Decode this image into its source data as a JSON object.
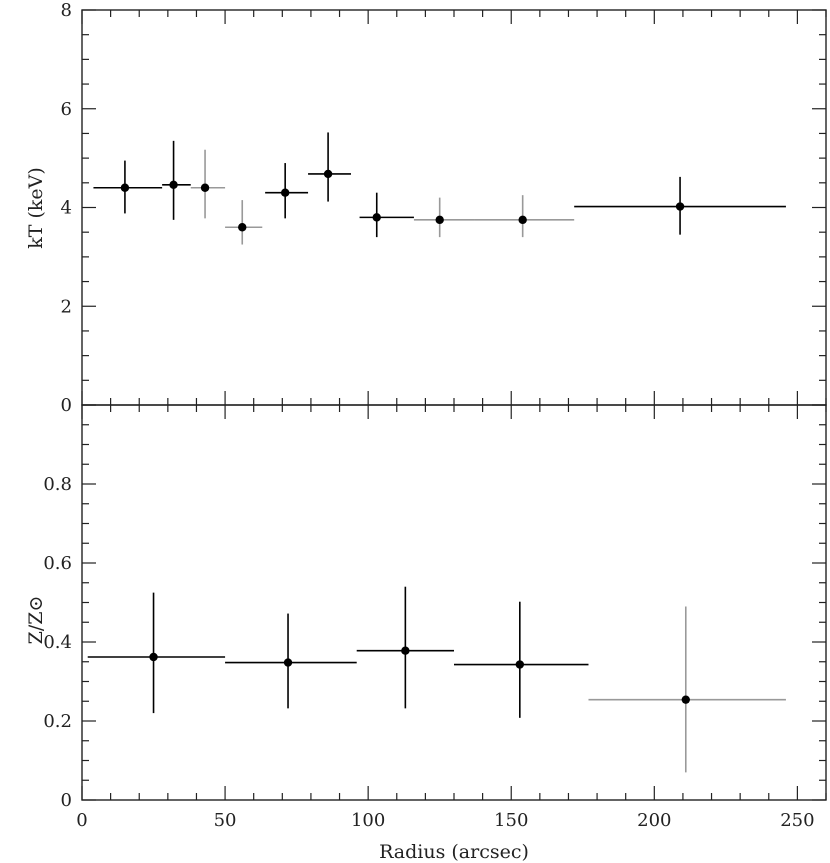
{
  "chart_data": [
    {
      "type": "scatter",
      "panel": "top",
      "xlabel": "",
      "ylabel": "kT (keV)",
      "xlim": [
        0,
        260
      ],
      "ylim": [
        0,
        8
      ],
      "ytick_labels": [
        "0",
        "2",
        "4",
        "6",
        "8"
      ],
      "x_ticks": [
        0,
        50,
        100,
        150,
        200,
        250
      ],
      "grid": false,
      "series": [
        {
          "points": [
            {
              "x": 15,
              "y": 4.4,
              "xlo": 4,
              "xhi": 28,
              "ylo": 3.88,
              "yhi": 4.95,
              "color": "#000000"
            },
            {
              "x": 32,
              "y": 4.46,
              "xlo": 28,
              "xhi": 38,
              "ylo": 3.75,
              "yhi": 5.35,
              "color": "#000000"
            },
            {
              "x": 43,
              "y": 4.4,
              "xlo": 38,
              "xhi": 50,
              "ylo": 3.78,
              "yhi": 5.17,
              "color": "#999999"
            },
            {
              "x": 56,
              "y": 3.6,
              "xlo": 50,
              "xhi": 63,
              "ylo": 3.25,
              "yhi": 4.15,
              "color": "#999999"
            },
            {
              "x": 71,
              "y": 4.3,
              "xlo": 64,
              "xhi": 79,
              "ylo": 3.78,
              "yhi": 4.9,
              "color": "#000000"
            },
            {
              "x": 86,
              "y": 4.68,
              "xlo": 79,
              "xhi": 94,
              "ylo": 4.12,
              "yhi": 5.52,
              "color": "#000000"
            },
            {
              "x": 103,
              "y": 3.8,
              "xlo": 97,
              "xhi": 116,
              "ylo": 3.4,
              "yhi": 4.3,
              "color": "#000000"
            },
            {
              "x": 125,
              "y": 3.75,
              "xlo": 116,
              "xhi": 137,
              "ylo": 3.4,
              "yhi": 4.2,
              "color": "#999999"
            },
            {
              "x": 154,
              "y": 3.75,
              "xlo": 137,
              "xhi": 172,
              "ylo": 3.4,
              "yhi": 4.25,
              "color": "#999999"
            },
            {
              "x": 209,
              "y": 4.02,
              "xlo": 172,
              "xhi": 246,
              "ylo": 3.45,
              "yhi": 4.62,
              "color": "#000000"
            }
          ]
        }
      ]
    },
    {
      "type": "scatter",
      "panel": "bottom",
      "xlabel": "Radius (arcsec)",
      "ylabel": "Z/Z⊙",
      "xlim": [
        0,
        260
      ],
      "ylim": [
        0,
        1.0
      ],
      "ytick_labels": [
        "0",
        "0.2",
        "0.4",
        "0.6",
        "0.8"
      ],
      "xtick_labels": [
        "0",
        "50",
        "100",
        "150",
        "200",
        "250"
      ],
      "grid": false,
      "series": [
        {
          "points": [
            {
              "x": 25,
              "y": 0.362,
              "xlo": 2,
              "xhi": 50,
              "ylo": 0.22,
              "yhi": 0.525,
              "color": "#000000"
            },
            {
              "x": 72,
              "y": 0.348,
              "xlo": 50,
              "xhi": 96,
              "ylo": 0.232,
              "yhi": 0.472,
              "color": "#000000"
            },
            {
              "x": 113,
              "y": 0.378,
              "xlo": 96,
              "xhi": 130,
              "ylo": 0.232,
              "yhi": 0.54,
              "color": "#000000"
            },
            {
              "x": 153,
              "y": 0.343,
              "xlo": 130,
              "xhi": 177,
              "ylo": 0.208,
              "yhi": 0.502,
              "color": "#000000"
            },
            {
              "x": 211,
              "y": 0.254,
              "xlo": 177,
              "xhi": 246,
              "ylo": 0.07,
              "yhi": 0.49,
              "color": "#999999"
            }
          ]
        }
      ]
    }
  ]
}
